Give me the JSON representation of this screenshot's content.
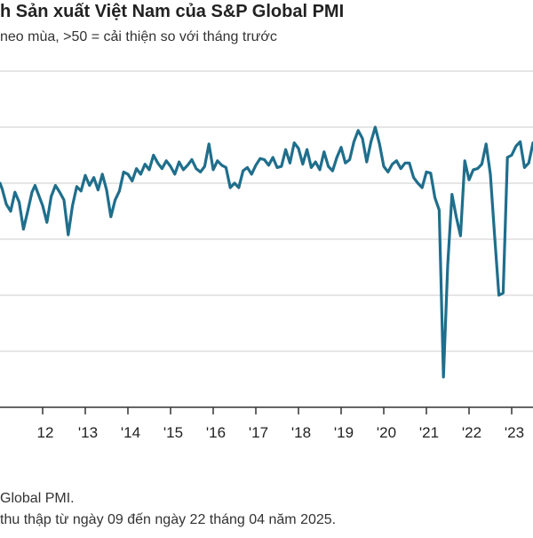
{
  "header": {
    "title": "h Sản xuất Việt Nam của S&P Global PMI",
    "subtitle": "neo mùa, >50 = cải thiện so với tháng trước"
  },
  "footer": {
    "source": "Global PMI.",
    "note": "thu thập từ ngày 09 đến ngày 22 tháng 04 năm 2025."
  },
  "colors": {
    "line": "#1f6e8c",
    "grid": "#cccccc",
    "axis": "#333333"
  },
  "chart_data": {
    "type": "line",
    "title": "h Sản xuất Việt Nam của S&P Global PMI",
    "subtitle": "neo mùa, >50 = cải thiện so với tháng trước",
    "xlabel": "",
    "ylabel": "",
    "x_tick_labels": [
      "12",
      "'13",
      "'14",
      "'15",
      "'16",
      "'17",
      "'18",
      "'19",
      "'20",
      "'21",
      "'22",
      "'23"
    ],
    "x_ticks": [
      2012.0,
      2013.0,
      2014.0,
      2015.0,
      2016.0,
      2017.0,
      2018.0,
      2019.0,
      2020.0,
      2021.0,
      2022.0,
      2023.0
    ],
    "xlim": [
      2011.0,
      2023.5
    ],
    "ylim": [
      30,
      60
    ],
    "gridlines_y": [
      30,
      35,
      40,
      45,
      50,
      55,
      60
    ],
    "grid": true,
    "series": [
      {
        "name": "",
        "points": [
          [
            2011.0,
            50.0
          ],
          [
            2011.05,
            49.5
          ],
          [
            2011.15,
            48.1
          ],
          [
            2011.25,
            47.5
          ],
          [
            2011.35,
            49.2
          ],
          [
            2011.45,
            48.3
          ],
          [
            2011.55,
            45.9
          ],
          [
            2011.65,
            47.5
          ],
          [
            2011.75,
            49.2
          ],
          [
            2011.82,
            49.8
          ],
          [
            2011.9,
            49.0
          ],
          [
            2012.0,
            48.0
          ],
          [
            2012.1,
            46.5
          ],
          [
            2012.2,
            48.8
          ],
          [
            2012.3,
            49.8
          ],
          [
            2012.4,
            49.2
          ],
          [
            2012.5,
            48.5
          ],
          [
            2012.6,
            45.4
          ],
          [
            2012.7,
            48.0
          ],
          [
            2012.8,
            49.7
          ],
          [
            2012.9,
            49.3
          ],
          [
            2013.0,
            50.7
          ],
          [
            2013.1,
            49.8
          ],
          [
            2013.2,
            50.5
          ],
          [
            2013.3,
            49.4
          ],
          [
            2013.4,
            50.8
          ],
          [
            2013.5,
            49.4
          ],
          [
            2013.6,
            47.0
          ],
          [
            2013.7,
            48.5
          ],
          [
            2013.8,
            49.3
          ],
          [
            2013.9,
            51.0
          ],
          [
            2014.0,
            50.8
          ],
          [
            2014.1,
            50.2
          ],
          [
            2014.2,
            51.3
          ],
          [
            2014.3,
            50.8
          ],
          [
            2014.4,
            51.7
          ],
          [
            2014.5,
            51.2
          ],
          [
            2014.6,
            52.5
          ],
          [
            2014.7,
            51.8
          ],
          [
            2014.8,
            51.3
          ],
          [
            2014.9,
            52.0
          ],
          [
            2015.0,
            51.5
          ],
          [
            2015.1,
            50.8
          ],
          [
            2015.2,
            51.9
          ],
          [
            2015.3,
            51.2
          ],
          [
            2015.4,
            51.6
          ],
          [
            2015.5,
            52.1
          ],
          [
            2015.6,
            51.3
          ],
          [
            2015.7,
            51.0
          ],
          [
            2015.8,
            51.5
          ],
          [
            2015.9,
            53.5
          ],
          [
            2016.0,
            51.2
          ],
          [
            2016.1,
            52.0
          ],
          [
            2016.2,
            51.6
          ],
          [
            2016.3,
            51.4
          ],
          [
            2016.4,
            49.6
          ],
          [
            2016.5,
            50.0
          ],
          [
            2016.6,
            49.6
          ],
          [
            2016.7,
            51.1
          ],
          [
            2016.8,
            51.4
          ],
          [
            2016.9,
            50.8
          ],
          [
            2017.0,
            51.6
          ],
          [
            2017.1,
            52.2
          ],
          [
            2017.2,
            52.1
          ],
          [
            2017.3,
            51.6
          ],
          [
            2017.4,
            52.3
          ],
          [
            2017.5,
            51.4
          ],
          [
            2017.6,
            51.5
          ],
          [
            2017.7,
            53.0
          ],
          [
            2017.8,
            51.8
          ],
          [
            2017.9,
            53.6
          ],
          [
            2018.0,
            53.1
          ],
          [
            2018.1,
            51.7
          ],
          [
            2018.2,
            53.0
          ],
          [
            2018.3,
            51.4
          ],
          [
            2018.4,
            51.9
          ],
          [
            2018.5,
            51.2
          ],
          [
            2018.6,
            52.8
          ],
          [
            2018.7,
            51.5
          ],
          [
            2018.8,
            51.1
          ],
          [
            2018.9,
            52.3
          ],
          [
            2019.0,
            53.2
          ],
          [
            2019.1,
            51.8
          ],
          [
            2019.2,
            52.1
          ],
          [
            2019.3,
            53.7
          ],
          [
            2019.4,
            54.7
          ],
          [
            2019.5,
            54.0
          ],
          [
            2019.6,
            51.9
          ],
          [
            2019.7,
            53.7
          ],
          [
            2019.8,
            55.0
          ],
          [
            2019.9,
            53.5
          ],
          [
            2020.0,
            51.5
          ],
          [
            2020.1,
            51.0
          ],
          [
            2020.2,
            51.7
          ],
          [
            2020.3,
            52.0
          ],
          [
            2020.4,
            51.3
          ],
          [
            2020.5,
            51.8
          ],
          [
            2020.6,
            51.8
          ],
          [
            2020.7,
            50.5
          ],
          [
            2020.8,
            50.0
          ],
          [
            2020.9,
            49.6
          ],
          [
            2021.0,
            51.0
          ],
          [
            2021.1,
            50.9
          ],
          [
            2021.2,
            48.7
          ],
          [
            2021.3,
            47.6
          ],
          [
            2021.4,
            32.7
          ],
          [
            2021.5,
            42.7
          ],
          [
            2021.6,
            49.0
          ],
          [
            2021.7,
            47.0
          ],
          [
            2021.8,
            45.3
          ],
          [
            2021.9,
            52.0
          ],
          [
            2022.0,
            50.3
          ],
          [
            2022.1,
            51.2
          ],
          [
            2022.2,
            51.3
          ],
          [
            2022.3,
            51.7
          ],
          [
            2022.4,
            53.5
          ],
          [
            2022.5,
            50.8
          ],
          [
            2022.6,
            45.3
          ],
          [
            2022.7,
            40.0
          ],
          [
            2022.8,
            40.2
          ],
          [
            2022.9,
            52.3
          ],
          [
            2023.0,
            52.5
          ],
          [
            2023.1,
            53.3
          ],
          [
            2023.2,
            53.7
          ],
          [
            2023.3,
            51.4
          ],
          [
            2023.4,
            51.8
          ],
          [
            2023.5,
            53.6
          ]
        ]
      }
    ]
  }
}
